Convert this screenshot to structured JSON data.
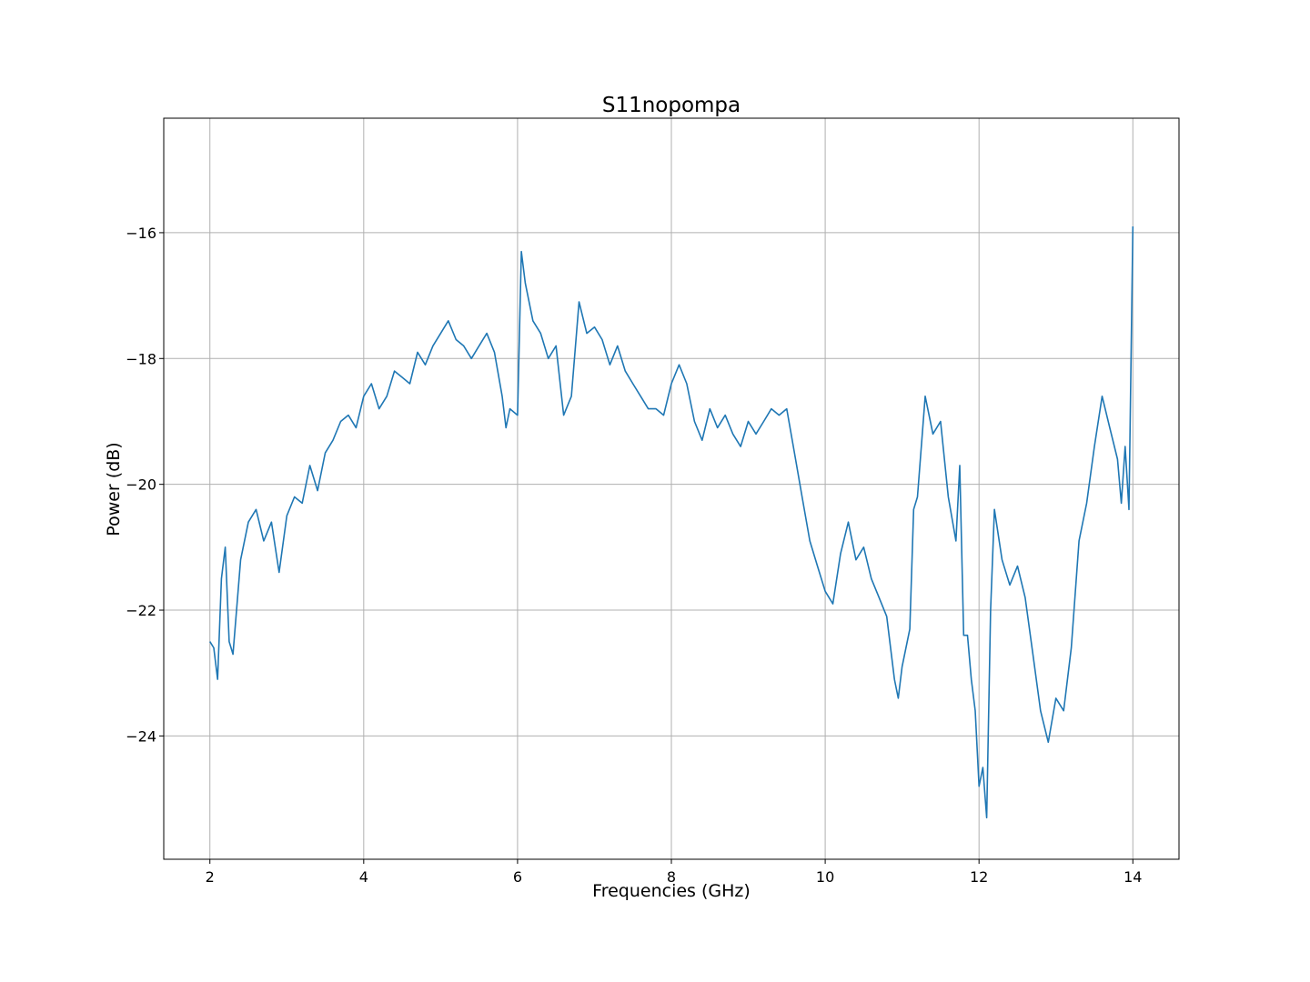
{
  "chart_data": {
    "type": "line",
    "title": "S11nopompa",
    "xlabel": "Frequencies (GHz)",
    "ylabel": "Power (dB)",
    "xlim": [
      1.4,
      14.6
    ],
    "ylim": [
      -25.96,
      -14.18
    ],
    "xticks": [
      2,
      4,
      6,
      8,
      10,
      12,
      14
    ],
    "xtick_labels": [
      "2",
      "4",
      "6",
      "8",
      "10",
      "12",
      "14"
    ],
    "yticks": [
      -16,
      -18,
      -20,
      -22,
      -24
    ],
    "ytick_labels": [
      "−16",
      "−18",
      "−20",
      "−22",
      "−24"
    ],
    "grid": true,
    "line_color": "#1f77b4",
    "series": [
      {
        "name": "S11nopompa",
        "x": [
          2.0,
          2.05,
          2.1,
          2.15,
          2.2,
          2.25,
          2.3,
          2.4,
          2.5,
          2.6,
          2.7,
          2.8,
          2.9,
          3.0,
          3.1,
          3.2,
          3.3,
          3.4,
          3.5,
          3.6,
          3.7,
          3.8,
          3.9,
          4.0,
          4.1,
          4.2,
          4.3,
          4.4,
          4.5,
          4.6,
          4.7,
          4.8,
          4.9,
          5.0,
          5.1,
          5.2,
          5.3,
          5.4,
          5.5,
          5.6,
          5.7,
          5.8,
          5.85,
          5.9,
          6.0,
          6.05,
          6.1,
          6.2,
          6.3,
          6.4,
          6.5,
          6.6,
          6.7,
          6.8,
          6.9,
          7.0,
          7.1,
          7.2,
          7.3,
          7.4,
          7.5,
          7.6,
          7.7,
          7.8,
          7.9,
          8.0,
          8.1,
          8.2,
          8.3,
          8.4,
          8.5,
          8.6,
          8.7,
          8.8,
          8.9,
          9.0,
          9.1,
          9.2,
          9.3,
          9.4,
          9.5,
          9.6,
          9.7,
          9.8,
          9.9,
          10.0,
          10.1,
          10.2,
          10.3,
          10.4,
          10.5,
          10.6,
          10.7,
          10.8,
          10.9,
          10.95,
          11.0,
          11.1,
          11.15,
          11.2,
          11.3,
          11.4,
          11.5,
          11.6,
          11.7,
          11.75,
          11.8,
          11.85,
          11.9,
          11.95,
          12.0,
          12.05,
          12.1,
          12.15,
          12.2,
          12.3,
          12.4,
          12.5,
          12.6,
          12.7,
          12.8,
          12.9,
          13.0,
          13.1,
          13.2,
          13.3,
          13.4,
          13.5,
          13.6,
          13.7,
          13.8,
          13.85,
          13.9,
          13.95,
          14.0
        ],
        "y": [
          -22.5,
          -22.6,
          -23.1,
          -21.5,
          -21.0,
          -22.5,
          -22.7,
          -21.2,
          -20.6,
          -20.4,
          -20.9,
          -20.6,
          -21.4,
          -20.5,
          -20.2,
          -20.3,
          -19.7,
          -20.1,
          -19.5,
          -19.3,
          -19.0,
          -18.9,
          -19.1,
          -18.6,
          -18.4,
          -18.8,
          -18.6,
          -18.2,
          -18.3,
          -18.4,
          -17.9,
          -18.1,
          -17.8,
          -17.6,
          -17.4,
          -17.7,
          -17.8,
          -18.0,
          -17.8,
          -17.6,
          -17.9,
          -18.6,
          -19.1,
          -18.8,
          -18.9,
          -16.3,
          -16.8,
          -17.4,
          -17.6,
          -18.0,
          -17.8,
          -18.9,
          -18.6,
          -17.1,
          -17.6,
          -17.5,
          -17.7,
          -18.1,
          -17.8,
          -18.2,
          -18.4,
          -18.6,
          -18.8,
          -18.8,
          -18.9,
          -18.4,
          -18.1,
          -18.4,
          -19.0,
          -19.3,
          -18.8,
          -19.1,
          -18.9,
          -19.2,
          -19.4,
          -19.0,
          -19.2,
          -19.0,
          -18.8,
          -18.9,
          -18.8,
          -19.5,
          -20.2,
          -20.9,
          -21.3,
          -21.7,
          -21.9,
          -21.1,
          -20.6,
          -21.2,
          -21.0,
          -21.5,
          -21.8,
          -22.1,
          -23.1,
          -23.4,
          -22.9,
          -22.3,
          -20.4,
          -20.2,
          -18.6,
          -19.2,
          -19.0,
          -20.2,
          -20.9,
          -19.7,
          -22.4,
          -22.4,
          -23.1,
          -23.6,
          -24.8,
          -24.5,
          -25.3,
          -22.0,
          -20.4,
          -21.2,
          -21.6,
          -21.3,
          -21.8,
          -22.7,
          -23.6,
          -24.1,
          -23.4,
          -23.6,
          -22.6,
          -20.9,
          -20.3,
          -19.4,
          -18.6,
          -19.1,
          -19.6,
          -20.3,
          -19.4,
          -20.4,
          -15.9
        ]
      }
    ]
  }
}
